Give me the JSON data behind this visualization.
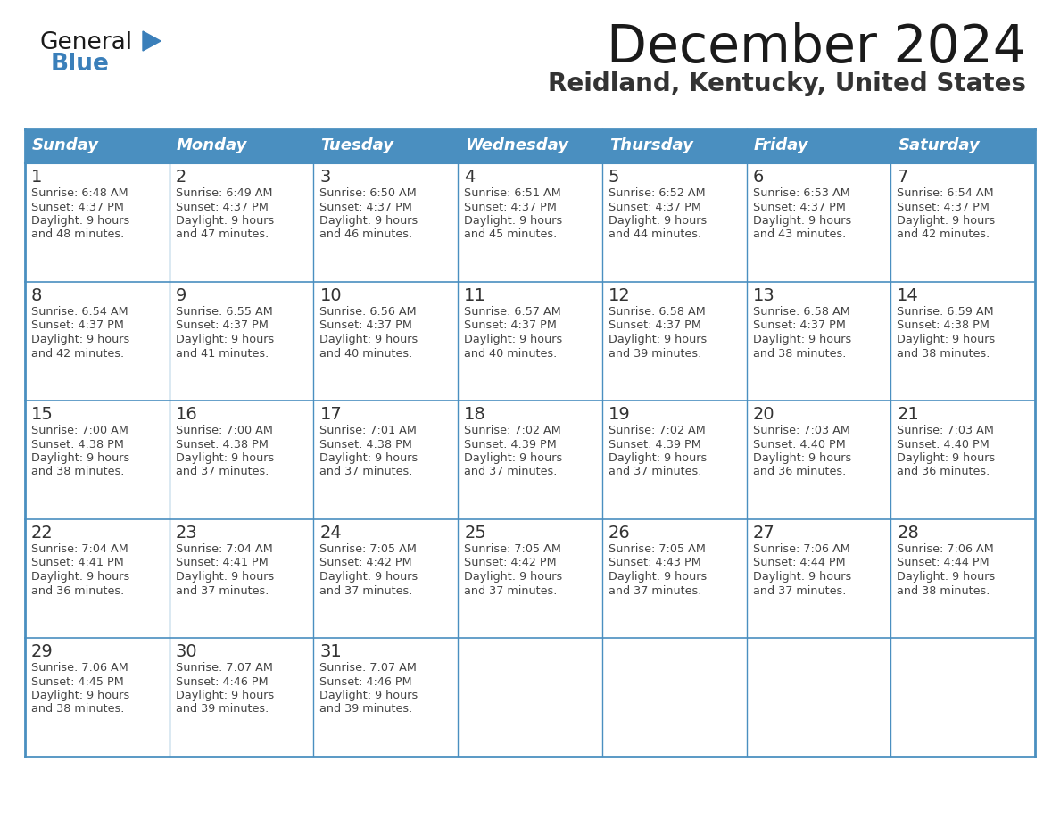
{
  "title": "December 2024",
  "subtitle": "Reidland, Kentucky, United States",
  "days_of_week": [
    "Sunday",
    "Monday",
    "Tuesday",
    "Wednesday",
    "Thursday",
    "Friday",
    "Saturday"
  ],
  "header_bg": "#4A8FC0",
  "header_text": "#FFFFFF",
  "cell_bg": "#FFFFFF",
  "border_color": "#4A8FC0",
  "day_number_color": "#333333",
  "cell_text_color": "#444444",
  "title_color": "#1a1a1a",
  "subtitle_color": "#333333",
  "weeks": [
    [
      {
        "day": 1,
        "sunrise": "6:48 AM",
        "sunset": "4:37 PM",
        "daylight": "9 hours\nand 48 minutes."
      },
      {
        "day": 2,
        "sunrise": "6:49 AM",
        "sunset": "4:37 PM",
        "daylight": "9 hours\nand 47 minutes."
      },
      {
        "day": 3,
        "sunrise": "6:50 AM",
        "sunset": "4:37 PM",
        "daylight": "9 hours\nand 46 minutes."
      },
      {
        "day": 4,
        "sunrise": "6:51 AM",
        "sunset": "4:37 PM",
        "daylight": "9 hours\nand 45 minutes."
      },
      {
        "day": 5,
        "sunrise": "6:52 AM",
        "sunset": "4:37 PM",
        "daylight": "9 hours\nand 44 minutes."
      },
      {
        "day": 6,
        "sunrise": "6:53 AM",
        "sunset": "4:37 PM",
        "daylight": "9 hours\nand 43 minutes."
      },
      {
        "day": 7,
        "sunrise": "6:54 AM",
        "sunset": "4:37 PM",
        "daylight": "9 hours\nand 42 minutes."
      }
    ],
    [
      {
        "day": 8,
        "sunrise": "6:54 AM",
        "sunset": "4:37 PM",
        "daylight": "9 hours\nand 42 minutes."
      },
      {
        "day": 9,
        "sunrise": "6:55 AM",
        "sunset": "4:37 PM",
        "daylight": "9 hours\nand 41 minutes."
      },
      {
        "day": 10,
        "sunrise": "6:56 AM",
        "sunset": "4:37 PM",
        "daylight": "9 hours\nand 40 minutes."
      },
      {
        "day": 11,
        "sunrise": "6:57 AM",
        "sunset": "4:37 PM",
        "daylight": "9 hours\nand 40 minutes."
      },
      {
        "day": 12,
        "sunrise": "6:58 AM",
        "sunset": "4:37 PM",
        "daylight": "9 hours\nand 39 minutes."
      },
      {
        "day": 13,
        "sunrise": "6:58 AM",
        "sunset": "4:37 PM",
        "daylight": "9 hours\nand 38 minutes."
      },
      {
        "day": 14,
        "sunrise": "6:59 AM",
        "sunset": "4:38 PM",
        "daylight": "9 hours\nand 38 minutes."
      }
    ],
    [
      {
        "day": 15,
        "sunrise": "7:00 AM",
        "sunset": "4:38 PM",
        "daylight": "9 hours\nand 38 minutes."
      },
      {
        "day": 16,
        "sunrise": "7:00 AM",
        "sunset": "4:38 PM",
        "daylight": "9 hours\nand 37 minutes."
      },
      {
        "day": 17,
        "sunrise": "7:01 AM",
        "sunset": "4:38 PM",
        "daylight": "9 hours\nand 37 minutes."
      },
      {
        "day": 18,
        "sunrise": "7:02 AM",
        "sunset": "4:39 PM",
        "daylight": "9 hours\nand 37 minutes."
      },
      {
        "day": 19,
        "sunrise": "7:02 AM",
        "sunset": "4:39 PM",
        "daylight": "9 hours\nand 37 minutes."
      },
      {
        "day": 20,
        "sunrise": "7:03 AM",
        "sunset": "4:40 PM",
        "daylight": "9 hours\nand 36 minutes."
      },
      {
        "day": 21,
        "sunrise": "7:03 AM",
        "sunset": "4:40 PM",
        "daylight": "9 hours\nand 36 minutes."
      }
    ],
    [
      {
        "day": 22,
        "sunrise": "7:04 AM",
        "sunset": "4:41 PM",
        "daylight": "9 hours\nand 36 minutes."
      },
      {
        "day": 23,
        "sunrise": "7:04 AM",
        "sunset": "4:41 PM",
        "daylight": "9 hours\nand 37 minutes."
      },
      {
        "day": 24,
        "sunrise": "7:05 AM",
        "sunset": "4:42 PM",
        "daylight": "9 hours\nand 37 minutes."
      },
      {
        "day": 25,
        "sunrise": "7:05 AM",
        "sunset": "4:42 PM",
        "daylight": "9 hours\nand 37 minutes."
      },
      {
        "day": 26,
        "sunrise": "7:05 AM",
        "sunset": "4:43 PM",
        "daylight": "9 hours\nand 37 minutes."
      },
      {
        "day": 27,
        "sunrise": "7:06 AM",
        "sunset": "4:44 PM",
        "daylight": "9 hours\nand 37 minutes."
      },
      {
        "day": 28,
        "sunrise": "7:06 AM",
        "sunset": "4:44 PM",
        "daylight": "9 hours\nand 38 minutes."
      }
    ],
    [
      {
        "day": 29,
        "sunrise": "7:06 AM",
        "sunset": "4:45 PM",
        "daylight": "9 hours\nand 38 minutes."
      },
      {
        "day": 30,
        "sunrise": "7:07 AM",
        "sunset": "4:46 PM",
        "daylight": "9 hours\nand 39 minutes."
      },
      {
        "day": 31,
        "sunrise": "7:07 AM",
        "sunset": "4:46 PM",
        "daylight": "9 hours\nand 39 minutes."
      },
      null,
      null,
      null,
      null
    ]
  ],
  "logo_triangle_color": "#3a7fba"
}
